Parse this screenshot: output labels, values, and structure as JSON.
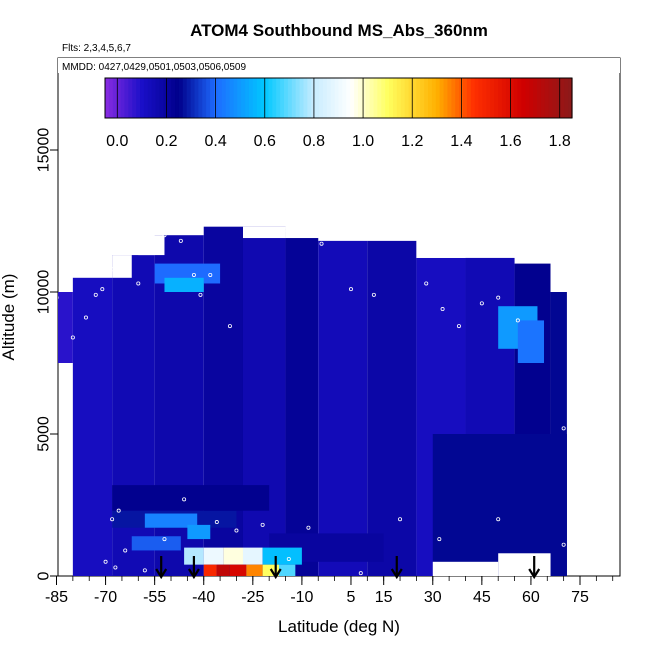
{
  "chart_data": {
    "type": "heatmap",
    "title": "ATOM4 Southbound MS_Abs_360nm",
    "flights_note": "Flts: 2,3,4,5,6,7",
    "dates_note": "MMDD: 0427,0429,0501,0503,0506,0509",
    "xlabel": "Latitude (deg N)",
    "ylabel": "Altitude (m)",
    "xlim": [
      -88,
      88
    ],
    "ylim": [
      0,
      17500
    ],
    "x_ticks": [
      "-85",
      "-70",
      "-55",
      "-40",
      "-25",
      "-10",
      "5",
      "15",
      "30",
      "45",
      "60",
      "75"
    ],
    "x_tick_values": [
      -85,
      -70,
      -55,
      -40,
      -25,
      -10,
      5,
      15,
      30,
      45,
      60,
      75
    ],
    "x_minor_step": 5,
    "y_ticks": [
      "0",
      "5000",
      "10000",
      "15000"
    ],
    "y_tick_values": [
      0,
      5000,
      10000,
      15000
    ],
    "colorbar": {
      "min": -0.05,
      "max": 1.85,
      "ticks": [
        "0.0",
        "0.2",
        "0.4",
        "0.6",
        "0.8",
        "1.0",
        "1.2",
        "1.4",
        "1.6",
        "1.8"
      ],
      "tick_values": [
        0,
        0.2,
        0.4,
        0.6,
        0.8,
        1.0,
        1.2,
        1.4,
        1.6,
        1.8
      ],
      "stops": [
        {
          "v": -0.05,
          "c": "#8a2be2"
        },
        {
          "v": 0.1,
          "c": "#1a0fc8"
        },
        {
          "v": 0.25,
          "c": "#00008b"
        },
        {
          "v": 0.4,
          "c": "#1e6bff"
        },
        {
          "v": 0.6,
          "c": "#00c8ff"
        },
        {
          "v": 0.8,
          "c": "#c8ecff"
        },
        {
          "v": 0.95,
          "c": "#ffffff"
        },
        {
          "v": 1.1,
          "c": "#ffff60"
        },
        {
          "v": 1.3,
          "c": "#ffb000"
        },
        {
          "v": 1.45,
          "c": "#ff3000"
        },
        {
          "v": 1.65,
          "c": "#d00000"
        },
        {
          "v": 1.85,
          "c": "#8b1a1a"
        }
      ]
    },
    "field_cells": [
      {
        "lat": [
          -87,
          -80
        ],
        "alt": [
          7500,
          10000
        ],
        "value": 0.08
      },
      {
        "lat": [
          -80,
          -68
        ],
        "alt": [
          0,
          10500
        ],
        "value": 0.12
      },
      {
        "lat": [
          -68,
          -55
        ],
        "alt": [
          0,
          11300
        ],
        "value": 0.15
      },
      {
        "lat": [
          -55,
          -40
        ],
        "alt": [
          0,
          12000
        ],
        "value": 0.17
      },
      {
        "lat": [
          -40,
          -28
        ],
        "alt": [
          0,
          12300
        ],
        "value": 0.2
      },
      {
        "lat": [
          -28,
          -15
        ],
        "alt": [
          0,
          12300
        ],
        "value": 0.16
      },
      {
        "lat": [
          -15,
          -5
        ],
        "alt": [
          0,
          11900
        ],
        "value": 0.22
      },
      {
        "lat": [
          -5,
          10
        ],
        "alt": [
          0,
          11800
        ],
        "value": 0.14
      },
      {
        "lat": [
          10,
          25
        ],
        "alt": [
          0,
          11800
        ],
        "value": 0.18
      },
      {
        "lat": [
          25,
          40
        ],
        "alt": [
          0,
          11200
        ],
        "value": 0.12
      },
      {
        "lat": [
          40,
          55
        ],
        "alt": [
          0,
          11200
        ],
        "value": 0.15
      },
      {
        "lat": [
          55,
          66
        ],
        "alt": [
          0,
          11000
        ],
        "value": 0.24
      },
      {
        "lat": [
          66,
          71
        ],
        "alt": [
          0,
          10000
        ],
        "value": 0.26
      },
      {
        "lat": [
          -68,
          -30
        ],
        "alt": [
          1700,
          2300
        ],
        "value": 0.28
      },
      {
        "lat": [
          -68,
          -20
        ],
        "alt": [
          2300,
          3200
        ],
        "value": 0.24
      },
      {
        "lat": [
          30,
          71
        ],
        "alt": [
          0,
          5000
        ],
        "value": 0.26
      },
      {
        "lat": [
          -20,
          15
        ],
        "alt": [
          500,
          1500
        ],
        "value": 0.2
      },
      {
        "lat": [
          -55,
          -35
        ],
        "alt": [
          10300,
          11000
        ],
        "value": 0.4
      },
      {
        "lat": [
          -52,
          -40
        ],
        "alt": [
          10000,
          10500
        ],
        "value": 0.55
      },
      {
        "lat": [
          50,
          62
        ],
        "alt": [
          8000,
          9500
        ],
        "value": 0.5
      },
      {
        "lat": [
          56,
          64
        ],
        "alt": [
          7500,
          9000
        ],
        "value": 0.42
      },
      {
        "lat": [
          -58,
          -42
        ],
        "alt": [
          1700,
          2200
        ],
        "value": 0.45
      },
      {
        "lat": [
          -45,
          -38
        ],
        "alt": [
          1300,
          1800
        ],
        "value": 0.5
      },
      {
        "lat": [
          -62,
          -47
        ],
        "alt": [
          900,
          1400
        ],
        "value": 0.38
      },
      {
        "lat": [
          -46,
          -40
        ],
        "alt": [
          400,
          1000
        ],
        "value": 0.78
      },
      {
        "lat": [
          -40,
          -34
        ],
        "alt": [
          400,
          1000
        ],
        "value": 0.9
      },
      {
        "lat": [
          -34,
          -28
        ],
        "alt": [
          400,
          1000
        ],
        "value": 0.98
      },
      {
        "lat": [
          -28,
          -22
        ],
        "alt": [
          400,
          1000
        ],
        "value": 0.88
      },
      {
        "lat": [
          -22,
          -10
        ],
        "alt": [
          400,
          1000
        ],
        "value": 0.58
      },
      {
        "lat": [
          -40,
          -36
        ],
        "alt": [
          0,
          400
        ],
        "value": 1.48
      },
      {
        "lat": [
          -36,
          -32
        ],
        "alt": [
          0,
          400
        ],
        "value": 1.7
      },
      {
        "lat": [
          -32,
          -27
        ],
        "alt": [
          0,
          400
        ],
        "value": 1.62
      },
      {
        "lat": [
          -27,
          -22
        ],
        "alt": [
          0,
          400
        ],
        "value": 1.35
      },
      {
        "lat": [
          -22,
          -17
        ],
        "alt": [
          0,
          400
        ],
        "value": 1.1
      },
      {
        "lat": [
          -17,
          -12
        ],
        "alt": [
          0,
          400
        ],
        "value": 0.68
      }
    ],
    "notches": [
      {
        "lat": [
          -68,
          -62
        ],
        "alt": [
          10500,
          11300
        ]
      },
      {
        "lat": [
          -60,
          -52
        ],
        "alt": [
          11300,
          12000
        ]
      },
      {
        "lat": [
          -28,
          -15
        ],
        "alt": [
          11900,
          12300
        ]
      },
      {
        "lat": [
          25,
          40
        ],
        "alt": [
          11200,
          11800
        ]
      },
      {
        "lat": [
          66,
          71
        ],
        "alt": [
          10000,
          11000
        ]
      }
    ],
    "missing_cells": [
      {
        "lat": [
          50,
          66
        ],
        "alt": [
          0,
          800
        ]
      },
      {
        "lat": [
          30,
          50
        ],
        "alt": [
          0,
          500
        ]
      }
    ],
    "sample_points": [
      {
        "lat": -85,
        "alt": 9800
      },
      {
        "lat": -80,
        "alt": 8400
      },
      {
        "lat": -76,
        "alt": 9100
      },
      {
        "lat": -73,
        "alt": 9900
      },
      {
        "lat": -71,
        "alt": 10100
      },
      {
        "lat": -68,
        "alt": 10800
      },
      {
        "lat": -64,
        "alt": 11400
      },
      {
        "lat": -60,
        "alt": 10300
      },
      {
        "lat": -56,
        "alt": 11600
      },
      {
        "lat": -52,
        "alt": 12000
      },
      {
        "lat": -47,
        "alt": 11800
      },
      {
        "lat": -43,
        "alt": 10600
      },
      {
        "lat": -41,
        "alt": 9900
      },
      {
        "lat": -38,
        "alt": 10600
      },
      {
        "lat": -32,
        "alt": 8800
      },
      {
        "lat": -15,
        "alt": 12200
      },
      {
        "lat": -4,
        "alt": 11700
      },
      {
        "lat": 5,
        "alt": 10100
      },
      {
        "lat": 12,
        "alt": 9900
      },
      {
        "lat": 28,
        "alt": 10300
      },
      {
        "lat": 33,
        "alt": 9400
      },
      {
        "lat": 38,
        "alt": 8800
      },
      {
        "lat": 45,
        "alt": 9600
      },
      {
        "lat": 50,
        "alt": 9800
      },
      {
        "lat": 56,
        "alt": 9000
      },
      {
        "lat": 64,
        "alt": 11400
      },
      {
        "lat": 70,
        "alt": 5200
      },
      {
        "lat": -70,
        "alt": 500
      },
      {
        "lat": -67,
        "alt": 300
      },
      {
        "lat": -64,
        "alt": 900
      },
      {
        "lat": -58,
        "alt": 200
      },
      {
        "lat": -52,
        "alt": 1300
      },
      {
        "lat": -46,
        "alt": 2700
      },
      {
        "lat": -36,
        "alt": 1900
      },
      {
        "lat": -30,
        "alt": 1600
      },
      {
        "lat": -22,
        "alt": 1800
      },
      {
        "lat": -14,
        "alt": 600
      },
      {
        "lat": -8,
        "alt": 1700
      },
      {
        "lat": 8,
        "alt": 100
      },
      {
        "lat": 20,
        "alt": 2000
      },
      {
        "lat": 32,
        "alt": 1300
      },
      {
        "lat": 50,
        "alt": 2000
      },
      {
        "lat": 70,
        "alt": 1100
      },
      {
        "lat": -68,
        "alt": 2000
      },
      {
        "lat": -66,
        "alt": 2300
      }
    ],
    "arrows_lat": [
      -53,
      -43,
      -18,
      19,
      61
    ]
  }
}
